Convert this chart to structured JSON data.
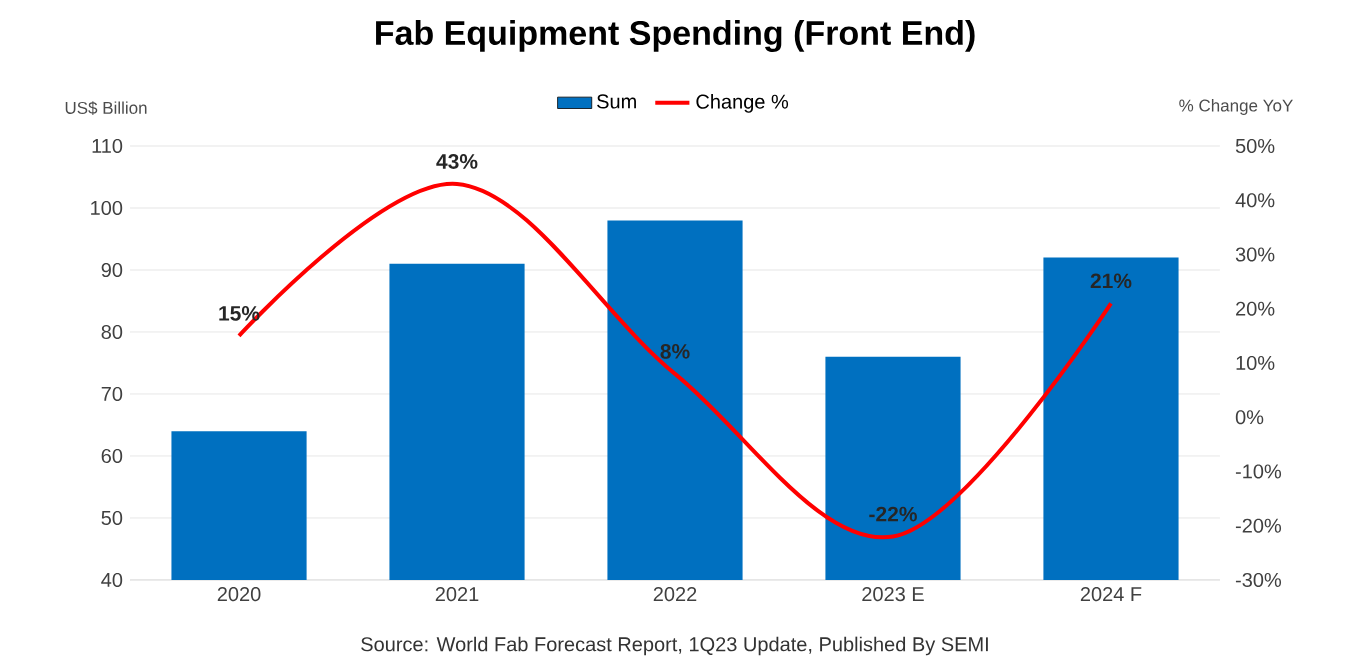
{
  "chart_data": {
    "type": "bar",
    "title": "Fab Equipment Spending (Front End)",
    "ylabel": "US$ Billion",
    "y2label": "% Change YoY",
    "categories": [
      "2020",
      "2021",
      "2022",
      "2023 E",
      "2024 F"
    ],
    "series": [
      {
        "name": "Sum",
        "color": "#0070c0",
        "values": [
          64,
          91,
          98,
          76,
          92
        ]
      },
      {
        "name": "Change %",
        "type": "line",
        "axis": "y2",
        "color": "#ff0000",
        "values": [
          15,
          43,
          8,
          -22,
          21
        ],
        "value_labels": [
          "15%",
          "43%",
          "8%",
          "-22%",
          "21%"
        ]
      }
    ],
    "ylim": [
      40,
      110
    ],
    "yticks": [
      40,
      50,
      60,
      70,
      80,
      90,
      100,
      110
    ],
    "y2lim": [
      -30,
      50
    ],
    "y2ticks": [
      {
        "value": -30,
        "label": "-30%"
      },
      {
        "value": -20,
        "label": "-20%"
      },
      {
        "value": -10,
        "label": "-10%"
      },
      {
        "value": 0,
        "label": "0%"
      },
      {
        "value": 10,
        "label": "10%"
      },
      {
        "value": 20,
        "label": "20%"
      },
      {
        "value": 30,
        "label": "30%"
      },
      {
        "value": 40,
        "label": "40%"
      },
      {
        "value": 50,
        "label": "50%"
      }
    ],
    "grid": "y",
    "legend": "top",
    "marker": "none",
    "annotations": [
      "Source: World Fab Forecast Report, 1Q23 Update, Published By SEMI"
    ]
  }
}
